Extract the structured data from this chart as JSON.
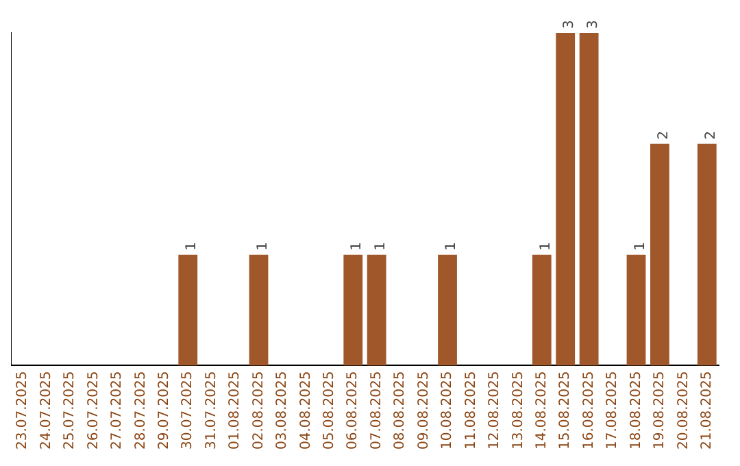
{
  "chart_data": {
    "type": "bar",
    "categories": [
      "23.07.2025",
      "24.07.2025",
      "25.07.2025",
      "26.07.2025",
      "27.07.2025",
      "28.07.2025",
      "29.07.2025",
      "30.07.2025",
      "31.07.2025",
      "01.08.2025",
      "02.08.2025",
      "03.08.2025",
      "04.08.2025",
      "05.08.2025",
      "06.08.2025",
      "07.08.2025",
      "08.08.2025",
      "09.08.2025",
      "10.08.2025",
      "11.08.2025",
      "12.08.2025",
      "13.08.2025",
      "14.08.2025",
      "15.08.2025",
      "16.08.2025",
      "17.08.2025",
      "18.08.2025",
      "19.08.2025",
      "20.08.2025",
      "21.08.2025"
    ],
    "values": [
      null,
      null,
      null,
      null,
      null,
      null,
      null,
      1,
      null,
      null,
      1,
      null,
      null,
      null,
      1,
      1,
      null,
      null,
      1,
      null,
      null,
      null,
      1,
      3,
      3,
      null,
      1,
      2,
      null,
      2
    ],
    "color": "#a0582a",
    "ylim": [
      0,
      3
    ],
    "tick_labels": "x",
    "data_labels": true,
    "grid": false,
    "legend": false
  }
}
